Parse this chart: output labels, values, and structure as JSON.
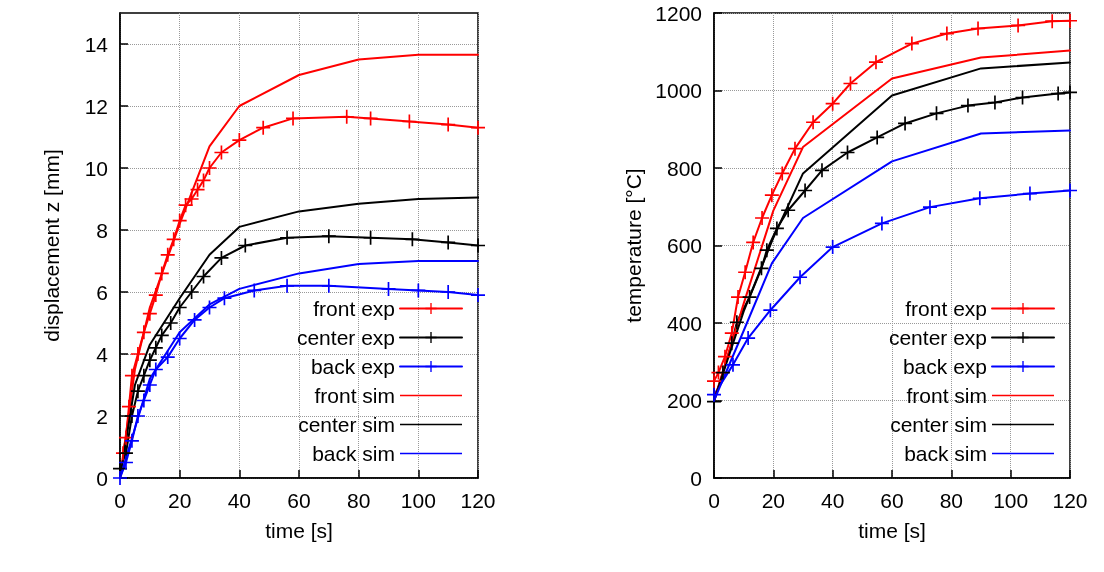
{
  "chart_data": [
    {
      "type": "line",
      "xlabel": "time [s]",
      "ylabel": "displacement z [mm]",
      "xlim": [
        0,
        120
      ],
      "xticks": [
        0,
        20,
        40,
        60,
        80,
        100,
        120
      ],
      "ylim": [
        0,
        15
      ],
      "yticks": [
        0,
        2,
        4,
        6,
        8,
        10,
        12,
        14
      ],
      "grid": true,
      "legend": "bottom right",
      "series": [
        {
          "name": "front exp",
          "color": "#ff0000",
          "marker": "cross",
          "x": [
            1,
            2,
            3,
            4,
            6,
            8,
            10,
            12,
            14,
            16,
            18,
            20,
            22,
            24,
            26,
            28,
            30,
            34,
            40,
            48,
            58,
            76,
            84,
            97,
            110,
            120
          ],
          "values": [
            0.8,
            1.3,
            2.3,
            3.3,
            4.0,
            4.7,
            5.3,
            5.9,
            6.6,
            7.2,
            7.7,
            8.3,
            8.8,
            9.0,
            9.3,
            9.6,
            10.0,
            10.5,
            10.9,
            11.3,
            11.6,
            11.65,
            11.6,
            11.5,
            11.4,
            11.3
          ]
        },
        {
          "name": "center exp",
          "color": "#000000",
          "marker": "cross",
          "x": [
            0,
            2,
            4,
            6,
            8,
            10,
            12,
            14,
            17,
            20,
            24,
            28,
            34,
            42,
            56,
            70,
            84,
            98,
            110,
            120
          ],
          "values": [
            0.3,
            0.8,
            2.0,
            2.8,
            3.3,
            3.8,
            4.2,
            4.6,
            5.0,
            5.5,
            6.0,
            6.5,
            7.1,
            7.5,
            7.75,
            7.8,
            7.75,
            7.7,
            7.6,
            7.5
          ]
        },
        {
          "name": "back exp",
          "color": "#0000ff",
          "marker": "cross",
          "x": [
            0,
            2,
            4,
            6,
            8,
            10,
            12,
            16,
            20,
            25,
            30,
            35,
            45,
            56,
            70,
            90,
            100,
            110,
            120
          ],
          "values": [
            0,
            0.5,
            1.2,
            2.0,
            2.5,
            3.0,
            3.5,
            3.9,
            4.5,
            5.1,
            5.5,
            5.8,
            6.05,
            6.2,
            6.2,
            6.1,
            6.05,
            6.0,
            5.9
          ]
        },
        {
          "name": "front sim",
          "color": "#ff0000",
          "marker": "none",
          "x": [
            0,
            5,
            10,
            20,
            30,
            40,
            60,
            80,
            100,
            120
          ],
          "values": [
            0,
            3.5,
            5.5,
            8.2,
            10.7,
            12.0,
            13.0,
            13.5,
            13.65,
            13.65
          ]
        },
        {
          "name": "center sim",
          "color": "#000000",
          "marker": "none",
          "x": [
            0,
            5,
            10,
            20,
            30,
            40,
            60,
            80,
            100,
            120
          ],
          "values": [
            0,
            3.0,
            4.3,
            5.8,
            7.2,
            8.1,
            8.6,
            8.85,
            9.0,
            9.05
          ]
        },
        {
          "name": "back sim",
          "color": "#0000ff",
          "marker": "none",
          "x": [
            0,
            10,
            20,
            30,
            40,
            60,
            80,
            100,
            120
          ],
          "values": [
            0,
            3.2,
            4.7,
            5.6,
            6.1,
            6.6,
            6.9,
            7.0,
            7.0
          ]
        }
      ]
    },
    {
      "type": "line",
      "xlabel": "time [s]",
      "ylabel": "temperature [°C]",
      "xlim": [
        0,
        120
      ],
      "xticks": [
        0,
        20,
        40,
        60,
        80,
        100,
        120
      ],
      "ylim": [
        0,
        1200
      ],
      "yticks": [
        0,
        200,
        400,
        600,
        800,
        1000,
        1200
      ],
      "grid": true,
      "legend": "bottom right",
      "series": [
        {
          "name": "front exp",
          "color": "#ff0000",
          "marker": "cross",
          "x": [
            0,
            1.5,
            3.7,
            6,
            8.1,
            10.5,
            13.2,
            16.2,
            19.5,
            23,
            27.3,
            33.4,
            40,
            46,
            54.6,
            66.7,
            78.5,
            89,
            102.5,
            114,
            120
          ],
          "values": [
            250,
            272,
            313,
            374,
            467,
            531,
            608,
            671,
            730,
            786,
            850,
            918,
            966,
            1018,
            1073,
            1121,
            1147,
            1160,
            1168,
            1179,
            1180
          ]
        },
        {
          "name": "center exp",
          "color": "#000000",
          "marker": "cross",
          "x": [
            0,
            3,
            6,
            7.7,
            12,
            16,
            17.8,
            21.2,
            25,
            30.7,
            36.4,
            45,
            55,
            64.4,
            75,
            85.6,
            94.7,
            104,
            116,
            120
          ],
          "values": [
            197,
            272,
            348,
            402,
            467,
            541,
            588,
            644,
            691,
            742,
            794,
            840,
            879,
            915,
            941,
            961,
            969,
            982,
            992,
            995
          ]
        },
        {
          "name": "back exp",
          "color": "#0000ff",
          "marker": "cross",
          "x": [
            0,
            6.4,
            11.5,
            19,
            29,
            40,
            56.6,
            72.8,
            89.6,
            106.5,
            120
          ],
          "values": [
            215,
            292,
            361,
            433,
            518,
            596,
            657,
            699,
            722,
            734,
            742
          ]
        },
        {
          "name": "front sim",
          "color": "#ff0000",
          "marker": "none",
          "x": [
            0,
            10,
            20,
            30,
            60,
            90,
            120
          ],
          "values": [
            200,
            450,
            690,
            854,
            1031,
            1085,
            1103
          ]
        },
        {
          "name": "center sim",
          "color": "#000000",
          "marker": "none",
          "x": [
            0,
            10,
            20,
            30,
            60,
            90,
            120
          ],
          "values": [
            200,
            430,
            620,
            786,
            987,
            1057,
            1072
          ]
        },
        {
          "name": "back sim",
          "color": "#0000ff",
          "marker": "none",
          "x": [
            0,
            10,
            19.5,
            30,
            60,
            90,
            120
          ],
          "values": [
            200,
            380,
            554,
            671,
            817,
            889,
            897
          ]
        }
      ]
    }
  ]
}
